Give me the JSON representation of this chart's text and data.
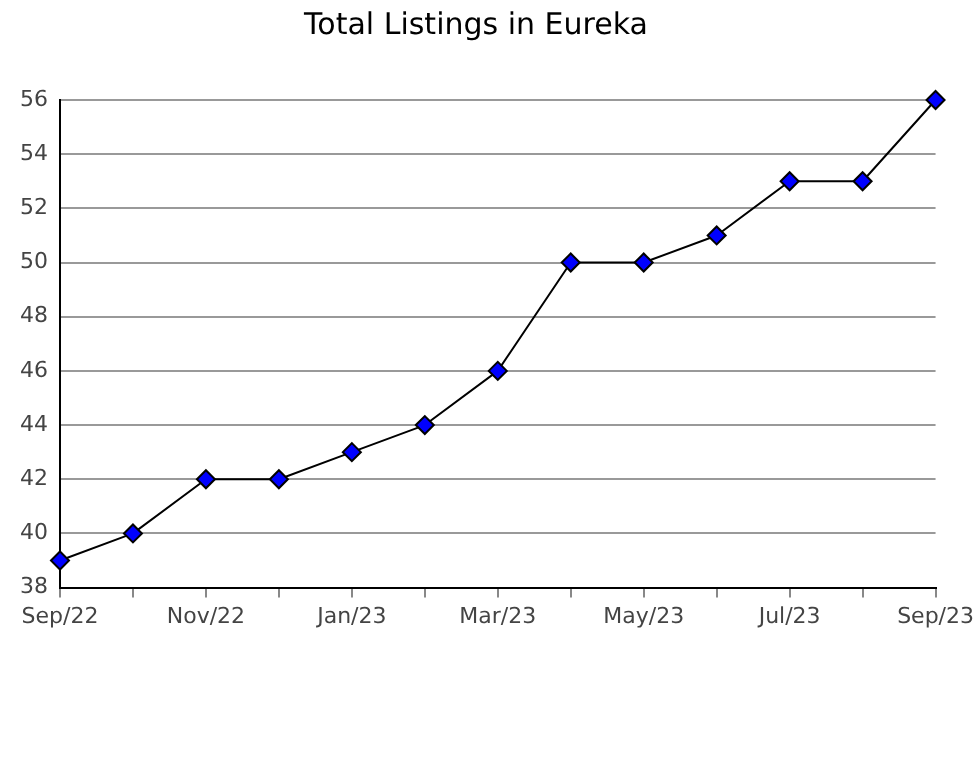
{
  "chart_data": {
    "type": "line",
    "title": "Total Listings in Eureka",
    "categories": [
      "Sep/22",
      null,
      "Nov/22",
      null,
      "Jan/23",
      null,
      "Mar/23",
      null,
      "May/23",
      null,
      "Jul/23",
      null,
      "Sep/23"
    ],
    "series": [
      {
        "color": "#0000ff",
        "values": [
          39,
          40,
          42,
          42,
          43,
          44,
          46,
          50,
          50,
          51,
          53,
          53,
          56
        ]
      }
    ],
    "ylim": [
      38,
      56
    ],
    "yticks": [
      38,
      40,
      42,
      44,
      46,
      48,
      50,
      52,
      54,
      56
    ],
    "grid": "y",
    "legend": false,
    "marker": "diamond",
    "line_style": "solid"
  }
}
